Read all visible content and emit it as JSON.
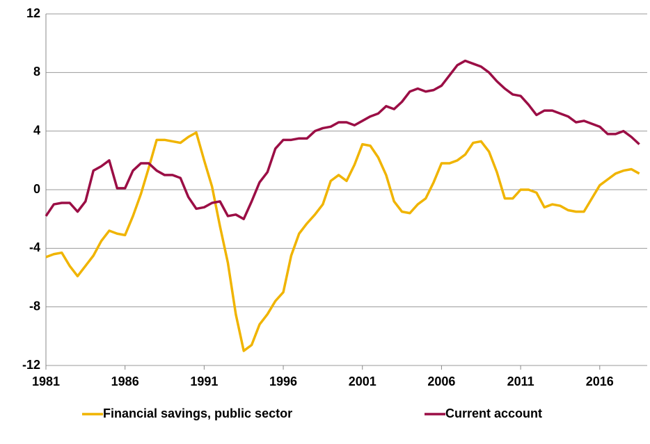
{
  "chart_data": {
    "type": "line",
    "x": [
      1981,
      1981.5,
      1982,
      1982.5,
      1983,
      1983.5,
      1984,
      1984.5,
      1985,
      1985.5,
      1986,
      1986.5,
      1987,
      1987.5,
      1988,
      1988.5,
      1989,
      1989.5,
      1990,
      1990.5,
      1991,
      1991.5,
      1992,
      1992.5,
      1993,
      1993.5,
      1994,
      1994.5,
      1995,
      1995.5,
      1996,
      1996.5,
      1997,
      1997.5,
      1998,
      1998.5,
      1999,
      1999.5,
      2000,
      2000.5,
      2001,
      2001.5,
      2002,
      2002.5,
      2003,
      2003.5,
      2004,
      2004.5,
      2005,
      2005.5,
      2006,
      2006.5,
      2007,
      2007.5,
      2008,
      2008.5,
      2009,
      2009.5,
      2010,
      2010.5,
      2011,
      2011.5,
      2012,
      2012.5,
      2013,
      2013.5,
      2014,
      2014.5,
      2015,
      2015.5,
      2016,
      2016.5,
      2017,
      2017.5,
      2018,
      2018.5
    ],
    "series": [
      {
        "name": "Financial savings, public sector",
        "color": "#f0b400",
        "values": [
          -4.6,
          -4.4,
          -4.3,
          -5.2,
          -5.9,
          -5.2,
          -4.5,
          -3.5,
          -2.8,
          -3.0,
          -3.1,
          -1.8,
          -0.3,
          1.5,
          3.4,
          3.4,
          3.3,
          3.2,
          3.6,
          3.9,
          2.0,
          0.2,
          -2.5,
          -5.0,
          -8.5,
          -11.0,
          -10.6,
          -9.2,
          -8.5,
          -7.6,
          -7.0,
          -4.5,
          -3.0,
          -2.3,
          -1.7,
          -1.0,
          0.6,
          1.0,
          0.6,
          1.7,
          3.1,
          3.0,
          2.2,
          1.0,
          -0.8,
          -1.5,
          -1.6,
          -1.0,
          -0.6,
          0.5,
          1.8,
          1.8,
          2.0,
          2.4,
          3.2,
          3.3,
          2.6,
          1.2,
          -0.6,
          -0.6,
          0.0,
          0.0,
          -0.2,
          -1.2,
          -1.0,
          -1.1,
          -1.4,
          -1.5,
          -1.5,
          -0.6,
          0.3,
          0.7,
          1.1,
          1.3,
          1.4,
          1.1
        ]
      },
      {
        "name": "Current account",
        "color": "#9b0e45",
        "values": [
          -1.8,
          -1.0,
          -0.9,
          -0.9,
          -1.5,
          -0.8,
          1.3,
          1.6,
          2.0,
          0.1,
          0.1,
          1.3,
          1.8,
          1.8,
          1.3,
          1.0,
          1.0,
          0.8,
          -0.5,
          -1.3,
          -1.2,
          -0.9,
          -0.8,
          -1.8,
          -1.7,
          -2.0,
          -0.8,
          0.5,
          1.2,
          2.8,
          3.4,
          3.4,
          3.5,
          3.5,
          4.0,
          4.2,
          4.3,
          4.6,
          4.6,
          4.4,
          4.7,
          5.0,
          5.2,
          5.7,
          5.5,
          6.0,
          6.7,
          6.9,
          6.7,
          6.8,
          7.1,
          7.8,
          8.5,
          8.8,
          8.6,
          8.4,
          8.0,
          7.4,
          6.9,
          6.5,
          6.4,
          5.8,
          5.1,
          5.4,
          5.4,
          5.2,
          5.0,
          4.6,
          4.7,
          4.5,
          4.3,
          3.8,
          3.8,
          4.0,
          3.6,
          3.1
        ]
      }
    ],
    "xlim": [
      1981,
      2019
    ],
    "xticks": [
      1981,
      1986,
      1991,
      1996,
      2001,
      2006,
      2011,
      2016
    ],
    "ylim": [
      -12,
      12
    ],
    "yticks": [
      -12,
      -8,
      -4,
      0,
      4,
      8,
      12
    ],
    "grid": true,
    "legend": "bottom"
  }
}
